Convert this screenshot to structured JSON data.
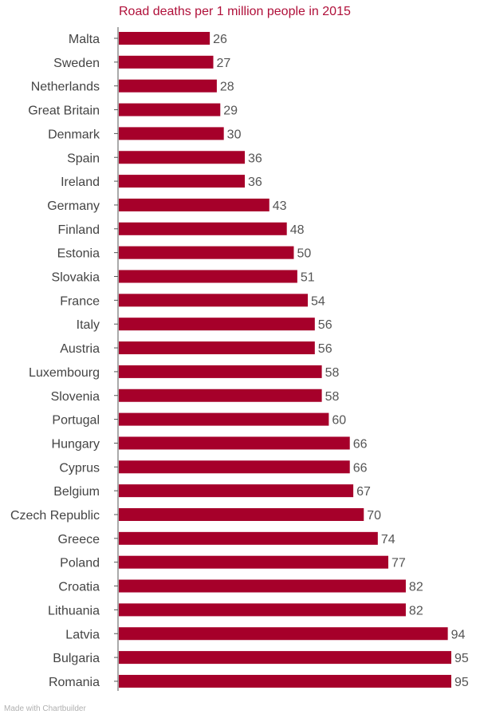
{
  "chart_data": {
    "type": "bar",
    "orientation": "horizontal",
    "title": "Road deaths per 1 million people in 2015",
    "xlabel": "",
    "ylabel": "",
    "xlim": [
      0,
      95
    ],
    "grid": false,
    "categories": [
      "Malta",
      "Sweden",
      "Netherlands",
      "Great Britain",
      "Denmark",
      "Spain",
      "Ireland",
      "Germany",
      "Finland",
      "Estonia",
      "Slovakia",
      "France",
      "Italy",
      "Austria",
      "Luxembourg",
      "Slovenia",
      "Portugal",
      "Hungary",
      "Cyprus",
      "Belgium",
      "Czech Republic",
      "Greece",
      "Poland",
      "Croatia",
      "Lithuania",
      "Latvia",
      "Bulgaria",
      "Romania"
    ],
    "values": [
      26,
      27,
      28,
      29,
      30,
      36,
      36,
      43,
      48,
      50,
      51,
      54,
      56,
      56,
      58,
      58,
      60,
      66,
      66,
      67,
      70,
      74,
      77,
      82,
      82,
      94,
      95,
      95
    ],
    "bar_color": "#a6002a"
  },
  "footer": "Made with Chartbuilder"
}
